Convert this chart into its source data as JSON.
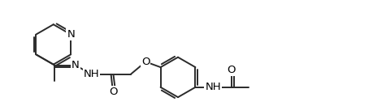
{
  "bg_color": "#ffffff",
  "line_color": "#2a2a2a",
  "bond_width": 1.4,
  "font_size": 9.5,
  "fig_width": 4.6,
  "fig_height": 1.31,
  "dpi": 100,
  "xlim": [
    0,
    13.5
  ],
  "ylim": [
    -0.5,
    3.8
  ]
}
